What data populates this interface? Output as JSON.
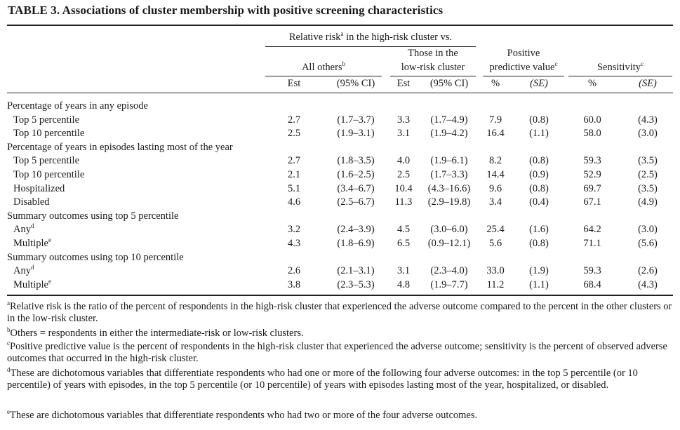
{
  "table": {
    "title": "TABLE 3. Associations of cluster membership with positive screening characteristics",
    "header": {
      "group_label": "Relative risk",
      "group_sup": "a",
      "group_suffix": " in the high-risk cluster vs.",
      "all_others": "All others",
      "all_others_sup": "b",
      "low_risk_line1": "Those in the",
      "low_risk_line2": "low-risk cluster",
      "ppv_line1": "Positive",
      "ppv_line2": "predictive value",
      "ppv_sup": "c",
      "sens": "Sensitivity",
      "sens_sup": "c",
      "sub": [
        "Est",
        "(95% CI)",
        "Est",
        "(95% CI)",
        "%",
        "(SE)",
        "%",
        "(SE)"
      ]
    },
    "rows": [
      {
        "type": "section",
        "label": "Percentage of years in any episode"
      },
      {
        "type": "data",
        "label": "Top 5 percentile",
        "sup": "",
        "vals": [
          "2.7",
          "(1.7–3.7)",
          "3.3",
          "(1.7–4.9)",
          "7.9",
          "(0.8)",
          "60.0",
          "(4.3)"
        ]
      },
      {
        "type": "data",
        "label": "Top 10 percentile",
        "sup": "",
        "vals": [
          "2.5",
          "(1.9–3.1)",
          "3.1",
          "(1.9–4.2)",
          "16.4",
          "(1.1)",
          "58.0",
          "(3.0)"
        ]
      },
      {
        "type": "section",
        "label": "Percentage of years in episodes lasting most of the year"
      },
      {
        "type": "data",
        "label": "Top 5 percentile",
        "sup": "",
        "vals": [
          "2.7",
          "(1.8–3.5)",
          "4.0",
          "(1.9–6.1)",
          "8.2",
          "(0.8)",
          "59.3",
          "(3.5)"
        ]
      },
      {
        "type": "data",
        "label": "Top 10 percentile",
        "sup": "",
        "vals": [
          "2.1",
          "(1.6–2.5)",
          "2.5",
          "(1.7–3.3)",
          "14.4",
          "(0.9)",
          "52.9",
          "(2.5)"
        ]
      },
      {
        "type": "data",
        "label": "Hospitalized",
        "sup": "",
        "vals": [
          "5.1",
          "(3.4–6.7)",
          "10.4",
          "(4.3–16.6)",
          "9.6",
          "(0.8)",
          "69.7",
          "(3.5)"
        ]
      },
      {
        "type": "data",
        "label": "Disabled",
        "sup": "",
        "vals": [
          "4.6",
          "(2.5–6.7)",
          "11.3",
          "(2.9–19.8)",
          "3.4",
          "(0.4)",
          "67.1",
          "(4.9)"
        ]
      },
      {
        "type": "section",
        "label": "Summary outcomes using top 5 percentile"
      },
      {
        "type": "data",
        "label": "Any",
        "sup": "d",
        "vals": [
          "3.2",
          "(2.4–3.9)",
          "4.5",
          "(3.0–6.0)",
          "25.4",
          "(1.6)",
          "64.2",
          "(3.0)"
        ]
      },
      {
        "type": "data",
        "label": "Multiple",
        "sup": "e",
        "vals": [
          "4.3",
          "(1.8–6.9)",
          "6.5",
          "(0.9–12.1)",
          "5.6",
          "(0.8)",
          "71.1",
          "(5.6)"
        ]
      },
      {
        "type": "section",
        "label": "Summary outcomes using top 10 percentile"
      },
      {
        "type": "data",
        "label": "Any",
        "sup": "d",
        "vals": [
          "2.6",
          "(2.1–3.1)",
          "3.1",
          "(2.3–4.0)",
          "33.0",
          "(1.9)",
          "59.3",
          "(2.6)"
        ]
      },
      {
        "type": "data",
        "label": "Multiple",
        "sup": "e",
        "vals": [
          "3.8",
          "(2.3–5.3)",
          "4.8",
          "(1.9–7.7)",
          "11.2",
          "(1.1)",
          "68.4",
          "(4.3)"
        ]
      }
    ],
    "footnotes": [
      {
        "sup": "a",
        "text": "Relative risk is the ratio of the percent of respondents in the high-risk cluster that experienced the adverse outcome compared to the percent in the other clusters or in the low-risk cluster."
      },
      {
        "sup": "b",
        "text": "Others = respondents in either the intermediate-risk or low-risk clusters."
      },
      {
        "sup": "c",
        "text": "Positive predictive value is the percent of respondents in the high-risk cluster that experienced the adverse outcome; sensitivity is the percent of observed adverse outcomes that occurred in the high-risk cluster."
      },
      {
        "sup": "d",
        "text": "These are dichotomous variables that differentiate respondents who had one or more of the following four adverse outcomes: in the top 5 percentile (or 10 percentile) of years with episodes, in the top 5 percentile (or 10 percentile) of years with episodes lasting most of the year, hospitalized, or disabled."
      },
      {
        "sup": "e",
        "text": "These are dichotomous variables that differentiate respondents who had two or more of the four adverse outcomes."
      }
    ]
  }
}
